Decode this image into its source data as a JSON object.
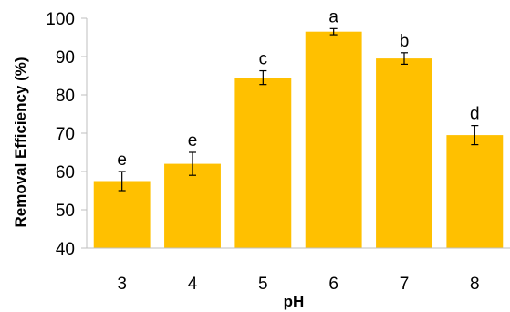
{
  "chart_data": {
    "type": "bar",
    "title": "",
    "xlabel": "pH",
    "ylabel": "Removal Efficiency (%)",
    "categories": [
      "3",
      "4",
      "5",
      "6",
      "7",
      "8"
    ],
    "values": [
      57.5,
      62,
      84.5,
      96.5,
      89.5,
      69.5
    ],
    "errors": [
      2.5,
      3,
      1.8,
      0.8,
      1.5,
      2.5
    ],
    "significance_letters": [
      "e",
      "e",
      "c",
      "a",
      "b",
      "d"
    ],
    "ylim": [
      40,
      100
    ],
    "yticks": [
      40,
      50,
      60,
      70,
      80,
      90,
      100
    ],
    "grid": false,
    "legend": "none",
    "bar_color": "#FFC000",
    "axis_color": "#bfbfbf",
    "error_bar_color": "#000000"
  }
}
